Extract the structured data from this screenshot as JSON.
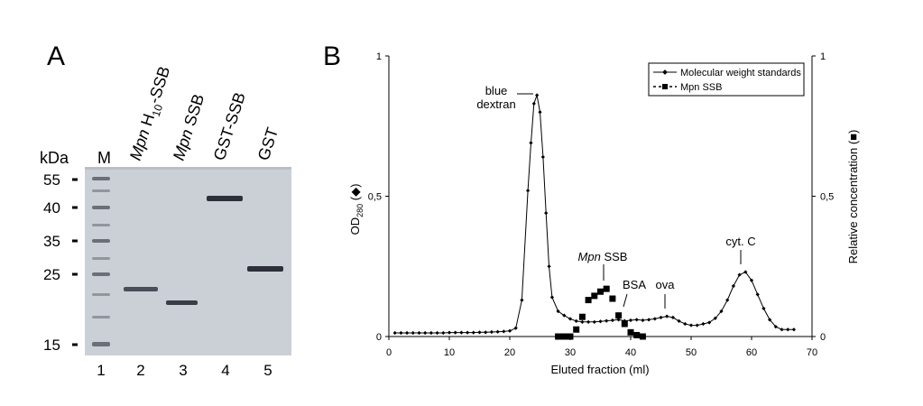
{
  "panel_a": {
    "label": "A",
    "kda_label": "kDa",
    "marker_header": "M",
    "mw_markers": [
      "55",
      "40",
      "35",
      "25",
      "15"
    ],
    "lane_headers": [
      {
        "prefix": "Mpn",
        "main": "H",
        "sub": "10",
        "suffix": "-SSB"
      },
      {
        "prefix": "Mpn",
        "main": "SSB",
        "sub": "",
        "suffix": ""
      },
      {
        "prefix": "",
        "main": "GST-SSB",
        "sub": "",
        "suffix": ""
      },
      {
        "prefix": "",
        "main": "GST",
        "sub": "",
        "suffix": ""
      }
    ],
    "lane_numbers": [
      "1",
      "2",
      "3",
      "4",
      "5"
    ],
    "gel_colors": {
      "background": "#cfd4db",
      "band": "#3a3d46",
      "marker_band": "#6b6f78"
    }
  },
  "chart_data": {
    "type": "line",
    "panel_label": "B",
    "xlabel": "Eluted fraction (ml)",
    "ylabel_left": {
      "main": "OD",
      "sub": "280",
      "suffix": " (◆)"
    },
    "ylabel_right": "Relative concentration (■)",
    "xlim": [
      0,
      70
    ],
    "ylim": [
      0,
      1
    ],
    "x_ticks": [
      "0",
      "10",
      "20",
      "30",
      "40",
      "50",
      "60",
      "70"
    ],
    "y_ticks": [
      "0",
      "0,5",
      "1"
    ],
    "legend_position": "top-right",
    "series": [
      {
        "name": "Molecular weight standards",
        "style": "line-small-diamond",
        "x": [
          1,
          2,
          3,
          4,
          5,
          6,
          7,
          8,
          9,
          10,
          11,
          12,
          13,
          14,
          15,
          16,
          17,
          18,
          19,
          20,
          21,
          22,
          23,
          23.5,
          24,
          24.5,
          25,
          25.5,
          26,
          26.5,
          27,
          28,
          29,
          30,
          31,
          32,
          33,
          34,
          35,
          36,
          37,
          38,
          39,
          40,
          41,
          42,
          43,
          44,
          45,
          46,
          47,
          48,
          49,
          50,
          51,
          52,
          53,
          54,
          55,
          56,
          57,
          58,
          59,
          60,
          61,
          62,
          63,
          64,
          65,
          66,
          67
        ],
        "y": [
          0.013,
          0.013,
          0.013,
          0.013,
          0.013,
          0.013,
          0.013,
          0.013,
          0.013,
          0.014,
          0.014,
          0.014,
          0.014,
          0.014,
          0.015,
          0.015,
          0.016,
          0.017,
          0.018,
          0.02,
          0.03,
          0.13,
          0.52,
          0.69,
          0.83,
          0.86,
          0.8,
          0.64,
          0.44,
          0.25,
          0.14,
          0.09,
          0.075,
          0.063,
          0.055,
          0.052,
          0.052,
          0.052,
          0.054,
          0.056,
          0.058,
          0.06,
          0.056,
          0.058,
          0.06,
          0.058,
          0.06,
          0.063,
          0.068,
          0.072,
          0.068,
          0.055,
          0.045,
          0.04,
          0.04,
          0.045,
          0.05,
          0.065,
          0.09,
          0.13,
          0.18,
          0.22,
          0.23,
          0.2,
          0.15,
          0.1,
          0.06,
          0.035,
          0.025,
          0.025,
          0.025
        ]
      },
      {
        "name": "Mpn SSB",
        "style": "dashed-square",
        "x": [
          28,
          29,
          30,
          31,
          32,
          33,
          34,
          35,
          36,
          37,
          38,
          39,
          40,
          41,
          42
        ],
        "y": [
          0.0,
          0.0,
          0.0,
          0.025,
          0.07,
          0.13,
          0.145,
          0.16,
          0.17,
          0.135,
          0.075,
          0.045,
          0.015,
          0.005,
          0.0
        ]
      }
    ],
    "annotations": [
      {
        "id": "blue-dextran",
        "lines": [
          "blue",
          "dextran"
        ],
        "x": 25
      },
      {
        "id": "mpn-ssb",
        "italic": "Mpn",
        "text": " SSB",
        "x": 35
      },
      {
        "id": "bsa",
        "text": "BSA",
        "x": 38.5
      },
      {
        "id": "ova",
        "text": "ova",
        "x": 46
      },
      {
        "id": "cyt-c",
        "text": "cyt. C",
        "x": 58
      }
    ]
  }
}
